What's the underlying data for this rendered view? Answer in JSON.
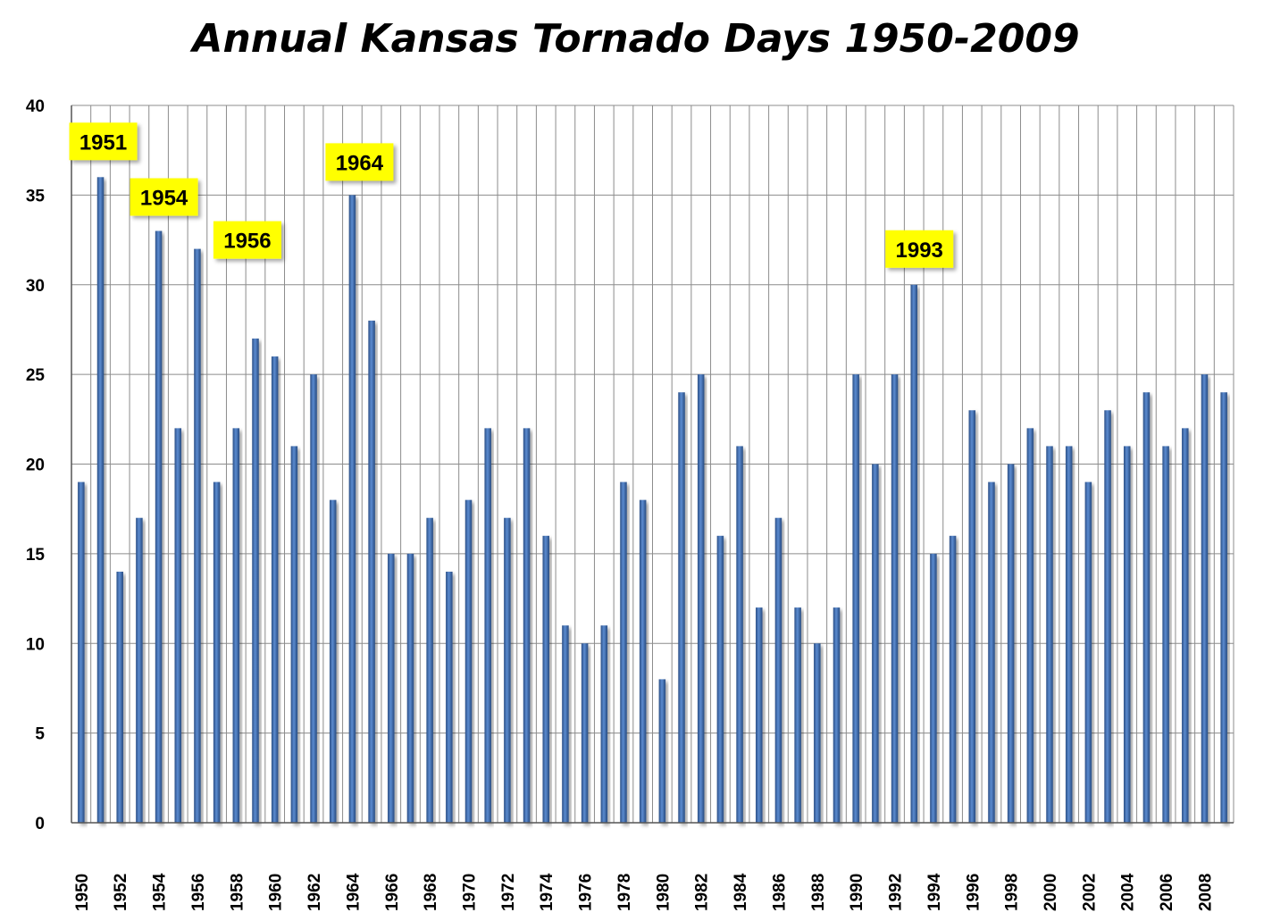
{
  "title": "Annual Kansas Tornado Days 1950-2009",
  "chart_data": {
    "type": "bar",
    "title": "Annual Kansas Tornado Days 1950-2009",
    "xlabel": "",
    "ylabel": "",
    "ylim": [
      0,
      40
    ],
    "yticks": [
      0,
      5,
      10,
      15,
      20,
      25,
      30,
      35,
      40
    ],
    "grid": true,
    "legend": "none",
    "bar_color": "#3a66a8",
    "categories": [
      1950,
      1951,
      1952,
      1953,
      1954,
      1955,
      1956,
      1957,
      1958,
      1959,
      1960,
      1961,
      1962,
      1963,
      1964,
      1965,
      1966,
      1967,
      1968,
      1969,
      1970,
      1971,
      1972,
      1973,
      1974,
      1975,
      1976,
      1977,
      1978,
      1979,
      1980,
      1981,
      1982,
      1983,
      1984,
      1985,
      1986,
      1987,
      1988,
      1989,
      1990,
      1991,
      1992,
      1993,
      1994,
      1995,
      1996,
      1997,
      1998,
      1999,
      2000,
      2001,
      2002,
      2003,
      2004,
      2005,
      2006,
      2007,
      2008,
      2009
    ],
    "xtick_labels": [
      "1950",
      "1952",
      "1954",
      "1956",
      "1958",
      "1960",
      "1962",
      "1964",
      "1966",
      "1968",
      "1970",
      "1972",
      "1974",
      "1976",
      "1978",
      "1980",
      "1982",
      "1984",
      "1986",
      "1988",
      "1990",
      "1992",
      "1994",
      "1996",
      "1998",
      "2000",
      "2002",
      "2004",
      "2006",
      "2008"
    ],
    "values": [
      19,
      36,
      14,
      17,
      33,
      22,
      32,
      19,
      22,
      27,
      26,
      21,
      25,
      18,
      35,
      28,
      15,
      15,
      17,
      14,
      18,
      22,
      17,
      22,
      16,
      11,
      10,
      11,
      19,
      18,
      8,
      24,
      25,
      16,
      21,
      12,
      17,
      12,
      10,
      12,
      25,
      20,
      25,
      30,
      15,
      16,
      23,
      19,
      20,
      22,
      21,
      21,
      19,
      23,
      21,
      24,
      21,
      22,
      25,
      24
    ],
    "annotations": [
      {
        "label": "1951",
        "year": 1951
      },
      {
        "label": "1954",
        "year": 1954
      },
      {
        "label": "1956",
        "year": 1956
      },
      {
        "label": "1964",
        "year": 1964
      },
      {
        "label": "1993",
        "year": 1993
      }
    ],
    "annotation_color": "#ffff00"
  }
}
